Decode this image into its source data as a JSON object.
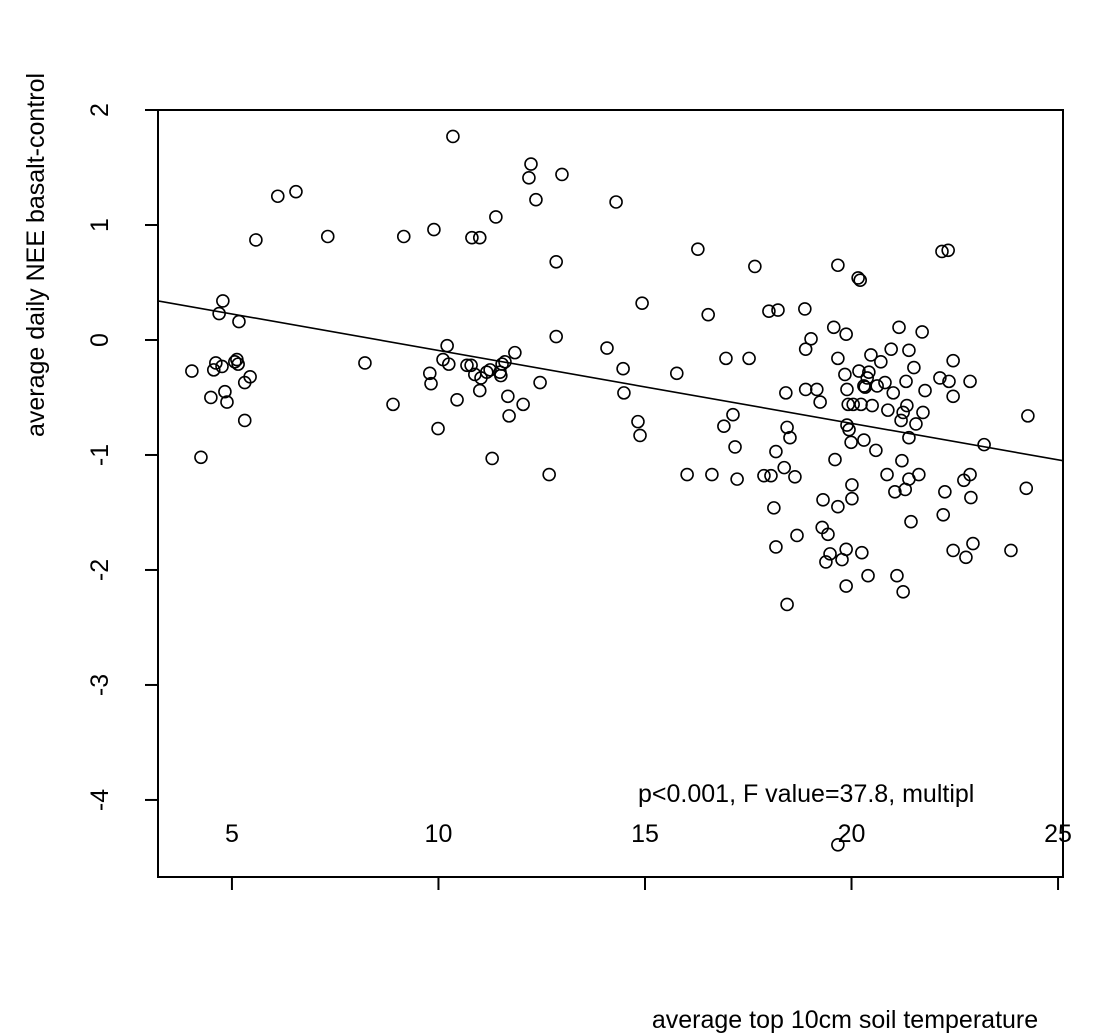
{
  "chart_data": {
    "type": "scatter",
    "x_label": "average top 10cm soil temperature",
    "y_label": "average daily NEE basalt-control",
    "annotation": "p<0.001, F value=37.8, multipl",
    "xlim": [
      3.21,
      25.12
    ],
    "ylim": [
      -4.67,
      2.0
    ],
    "xticks": [
      5,
      10,
      15,
      20,
      25
    ],
    "yticks": [
      -4,
      -3,
      -2,
      -1,
      0,
      1,
      2
    ],
    "color": "#000000",
    "marker": "open-circle",
    "x": [
      4.03,
      4.25,
      4.49,
      4.56,
      4.61,
      4.69,
      4.78,
      4.83,
      4.88,
      4.76,
      5.07,
      5.12,
      5.15,
      5.17,
      5.31,
      5.44,
      5.31,
      5.58,
      6.11,
      6.55,
      7.32,
      8.22,
      8.9,
      9.16,
      9.79,
      9.82,
      9.89,
      9.99,
      10.11,
      10.21,
      10.25,
      10.35,
      10.45,
      10.69,
      10.79,
      10.81,
      10.88,
      11.0,
      11.0,
      11.03,
      11.17,
      11.25,
      11.3,
      11.39,
      11.49,
      11.51,
      11.54,
      11.61,
      11.68,
      11.71,
      11.85,
      12.05,
      12.19,
      12.24,
      12.36,
      12.46,
      12.68,
      12.85,
      12.85,
      12.99,
      14.08,
      14.3,
      14.47,
      14.49,
      14.83,
      14.88,
      14.93,
      15.77,
      16.02,
      16.28,
      16.53,
      16.62,
      16.91,
      16.96,
      17.13,
      17.18,
      17.23,
      17.52,
      17.66,
      17.88,
      18.0,
      18.05,
      18.12,
      18.17,
      18.17,
      18.22,
      18.37,
      18.41,
      18.44,
      18.44,
      18.51,
      18.63,
      18.68,
      18.87,
      18.89,
      18.89,
      19.02,
      19.16,
      19.24,
      19.31,
      19.29,
      19.38,
      19.43,
      19.48,
      19.57,
      19.6,
      19.67,
      19.67,
      19.67,
      19.67,
      19.77,
      19.84,
      19.87,
      19.87,
      19.87,
      19.89,
      19.89,
      19.92,
      19.94,
      19.99,
      20.01,
      20.01,
      20.04,
      20.16,
      20.21,
      20.18,
      20.23,
      20.25,
      20.3,
      20.3,
      20.33,
      20.38,
      20.4,
      20.42,
      20.47,
      20.5,
      20.59,
      20.62,
      20.71,
      20.81,
      20.86,
      20.88,
      20.96,
      21.01,
      21.05,
      21.1,
      21.15,
      21.2,
      21.22,
      21.25,
      21.25,
      21.3,
      21.32,
      21.34,
      21.39,
      21.39,
      21.39,
      21.44,
      21.51,
      21.56,
      21.63,
      21.71,
      21.73,
      21.78,
      22.14,
      22.19,
      22.22,
      22.26,
      22.34,
      22.36,
      22.46,
      22.46,
      22.46,
      22.72,
      22.77,
      22.87,
      22.87,
      22.89,
      22.94,
      23.21,
      23.86,
      24.23,
      24.27
    ],
    "values": [
      -0.27,
      -1.02,
      -0.5,
      -0.26,
      -0.2,
      0.23,
      0.34,
      -0.45,
      -0.54,
      -0.23,
      -0.19,
      -0.17,
      -0.21,
      0.16,
      -0.37,
      -0.32,
      -0.7,
      0.87,
      1.25,
      1.29,
      0.9,
      -0.2,
      -0.56,
      0.9,
      -0.29,
      -0.38,
      0.96,
      -0.77,
      -0.17,
      -0.05,
      -0.21,
      1.77,
      -0.52,
      -0.22,
      -0.22,
      0.89,
      -0.3,
      0.89,
      -0.44,
      -0.33,
      -0.28,
      -0.26,
      -1.03,
      1.07,
      -0.28,
      -0.31,
      -0.21,
      -0.19,
      -0.49,
      -0.66,
      -0.11,
      -0.56,
      1.41,
      1.53,
      1.22,
      -0.37,
      -1.17,
      0.68,
      0.03,
      1.44,
      -0.07,
      1.2,
      -0.25,
      -0.46,
      -0.71,
      -0.83,
      0.32,
      -0.29,
      -1.17,
      0.79,
      0.22,
      -1.17,
      -0.75,
      -0.16,
      -0.65,
      -0.93,
      -1.21,
      -0.16,
      0.64,
      -1.18,
      0.25,
      -1.18,
      -1.46,
      -0.97,
      -1.8,
      0.26,
      -1.11,
      -0.46,
      -0.76,
      -2.3,
      -0.85,
      -1.19,
      -1.7,
      0.27,
      -0.43,
      -0.08,
      0.01,
      -0.43,
      -0.54,
      -1.39,
      -1.63,
      -1.93,
      -1.69,
      -1.86,
      0.11,
      -1.04,
      -0.16,
      0.65,
      -1.45,
      -4.39,
      -1.91,
      -0.3,
      0.05,
      -1.82,
      -2.14,
      -0.74,
      -0.43,
      -0.56,
      -0.78,
      -0.89,
      -1.26,
      -1.38,
      -0.56,
      0.54,
      0.52,
      -0.27,
      -0.56,
      -1.85,
      -0.87,
      -0.4,
      -0.41,
      -0.33,
      -2.05,
      -0.28,
      -0.13,
      -0.57,
      -0.96,
      -0.4,
      -0.19,
      -0.37,
      -1.17,
      -0.61,
      -0.08,
      -0.46,
      -1.32,
      -2.05,
      0.11,
      -0.7,
      -1.05,
      -0.63,
      -2.19,
      -1.3,
      -0.36,
      -0.57,
      -0.09,
      -0.85,
      -1.21,
      -1.58,
      -0.24,
      -0.73,
      -1.17,
      0.07,
      -0.63,
      -0.44,
      -0.33,
      0.77,
      -1.52,
      -1.32,
      0.78,
      -0.36,
      -0.18,
      -1.83,
      -0.49,
      -1.22,
      -1.89,
      -1.17,
      -0.36,
      -1.37,
      -1.77,
      -0.91,
      -1.83,
      -1.29,
      -0.66
    ],
    "trend": {
      "x": [
        3.21,
        25.12
      ],
      "values": [
        0.34,
        -1.05
      ]
    }
  }
}
